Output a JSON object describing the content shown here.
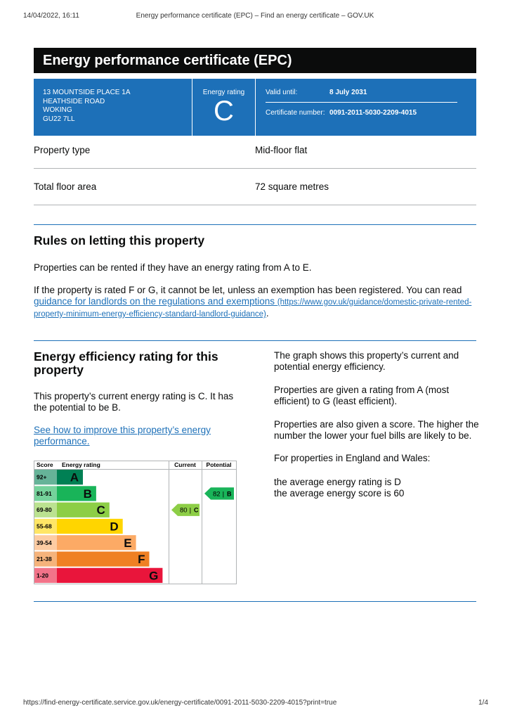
{
  "print_header": {
    "datetime": "14/04/2022, 16:11",
    "page_title": "Energy performance certificate (EPC) – Find an energy certificate – GOV.UK"
  },
  "header": {
    "title": "Energy performance certificate (EPC)",
    "address": [
      "13 MOUNTSIDE PLACE 1A",
      "HEATHSIDE ROAD",
      "WOKING",
      "GU22 7LL"
    ],
    "rating_label": "Energy rating",
    "rating": "C",
    "valid_until_label": "Valid until:",
    "valid_until": "8 July 2031",
    "certificate_label": "Certificate number:",
    "certificate_number": "0091-2011-5030-2209-4015"
  },
  "summary": [
    {
      "label": "Property type",
      "value": "Mid-floor flat"
    },
    {
      "label": "Total floor area",
      "value": "72 square metres"
    }
  ],
  "letting": {
    "heading": "Rules on letting this property",
    "paragraph": "Properties can be rented if they have an energy rating from A to E.",
    "paragraph2_text": "If the property is rated F or G, it cannot be let, unless an exemption has been registered. You can read ",
    "link_text": "guidance for landlords on the regulations and exemptions",
    "link_url": "(https://www.gov.uk/guidance/domestic-private-rented-property-minimum-energy-efficiency-standard-landlord-guidance)",
    "paragraph2_end": "."
  },
  "efficiency": {
    "heading": "Energy efficiency rating for this property",
    "paragraph": "This property’s current energy rating is C. It has the potential to be B.",
    "link_text": "See how to improve this property’s energy performance.",
    "side_paragraphs": [
      "The graph shows this property’s current and potential energy efficiency.",
      "Properties are given a rating from A (most efficient) to G (least efficient).",
      "Properties are also given a score. The higher the number the lower your fuel bills are likely to be.",
      "For properties in England and Wales:"
    ],
    "average_lines": [
      "the average energy rating is D",
      "the average energy score is 60"
    ]
  },
  "epc_chart": {
    "headers": [
      "Score",
      "Energy rating",
      "Current",
      "Potential"
    ],
    "bands": [
      {
        "score": "92+",
        "letter": "A",
        "color": "#008054"
      },
      {
        "score": "81-91",
        "letter": "B",
        "color": "#19b459"
      },
      {
        "score": "69-80",
        "letter": "C",
        "color": "#8dce46"
      },
      {
        "score": "55-68",
        "letter": "D",
        "color": "#ffd500"
      },
      {
        "score": "39-54",
        "letter": "E",
        "color": "#fcaa65"
      },
      {
        "score": "21-38",
        "letter": "F",
        "color": "#ef8023"
      },
      {
        "score": "1-20",
        "letter": "G",
        "color": "#e9153b"
      }
    ],
    "separator": "|",
    "current": {
      "score": 80,
      "letter": "C"
    },
    "potential": {
      "score": 82,
      "letter": "B"
    }
  },
  "print_footer": {
    "url": "https://find-energy-certificate.service.gov.uk/energy-certificate/0091-2011-5030-2209-4015?print=true",
    "page": "1/4"
  }
}
